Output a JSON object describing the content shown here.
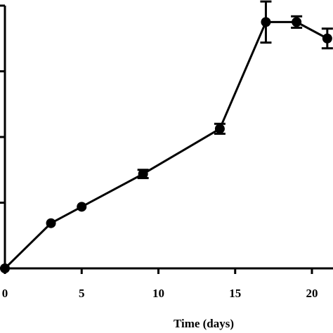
{
  "chart_data": {
    "type": "line",
    "title": "",
    "xlabel": "Time (days)",
    "ylabel": "",
    "xlim": [
      0,
      21
    ],
    "ylim": [
      0,
      320
    ],
    "x_ticks": [
      "0",
      "5",
      "10",
      "15",
      "20"
    ],
    "grid": false,
    "series": [
      {
        "x": [
          0,
          3,
          5,
          9,
          14,
          17,
          19,
          21
        ],
        "y": [
          0,
          55,
          75,
          115,
          170,
          300,
          300,
          280
        ],
        "err": [
          0,
          0,
          0,
          5,
          6,
          25,
          7,
          12
        ],
        "color": "#000000"
      }
    ]
  }
}
